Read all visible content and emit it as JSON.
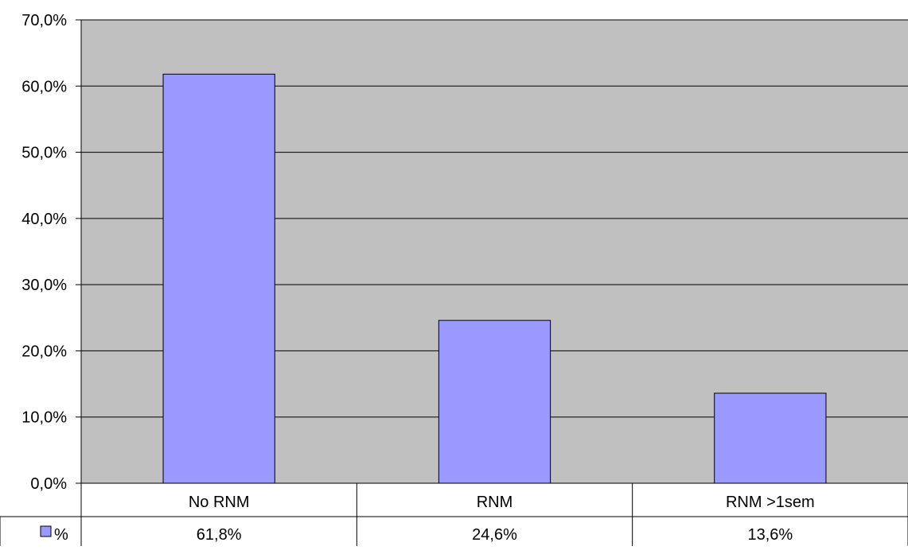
{
  "chart_data": {
    "type": "bar",
    "categories": [
      "No RNM",
      "RNM",
      "RNM >1sem"
    ],
    "series": [
      {
        "name": "%",
        "values": [
          61.8,
          24.6,
          13.6
        ],
        "color": "#9999ff"
      }
    ],
    "ylim": [
      0,
      70
    ],
    "yticks": [
      0,
      10,
      20,
      30,
      40,
      50,
      60,
      70
    ],
    "ytick_labels": [
      "0,0%",
      "10,0%",
      "20,0%",
      "30,0%",
      "40,0%",
      "50,0%",
      "60,0%",
      "70,0%"
    ],
    "data_table_values": [
      "61,8%",
      "24,6%",
      "13,6%"
    ],
    "grid": true,
    "plot_background": "#c0c0c0",
    "bar_edge_color": "#000000",
    "legend": "data-table"
  }
}
